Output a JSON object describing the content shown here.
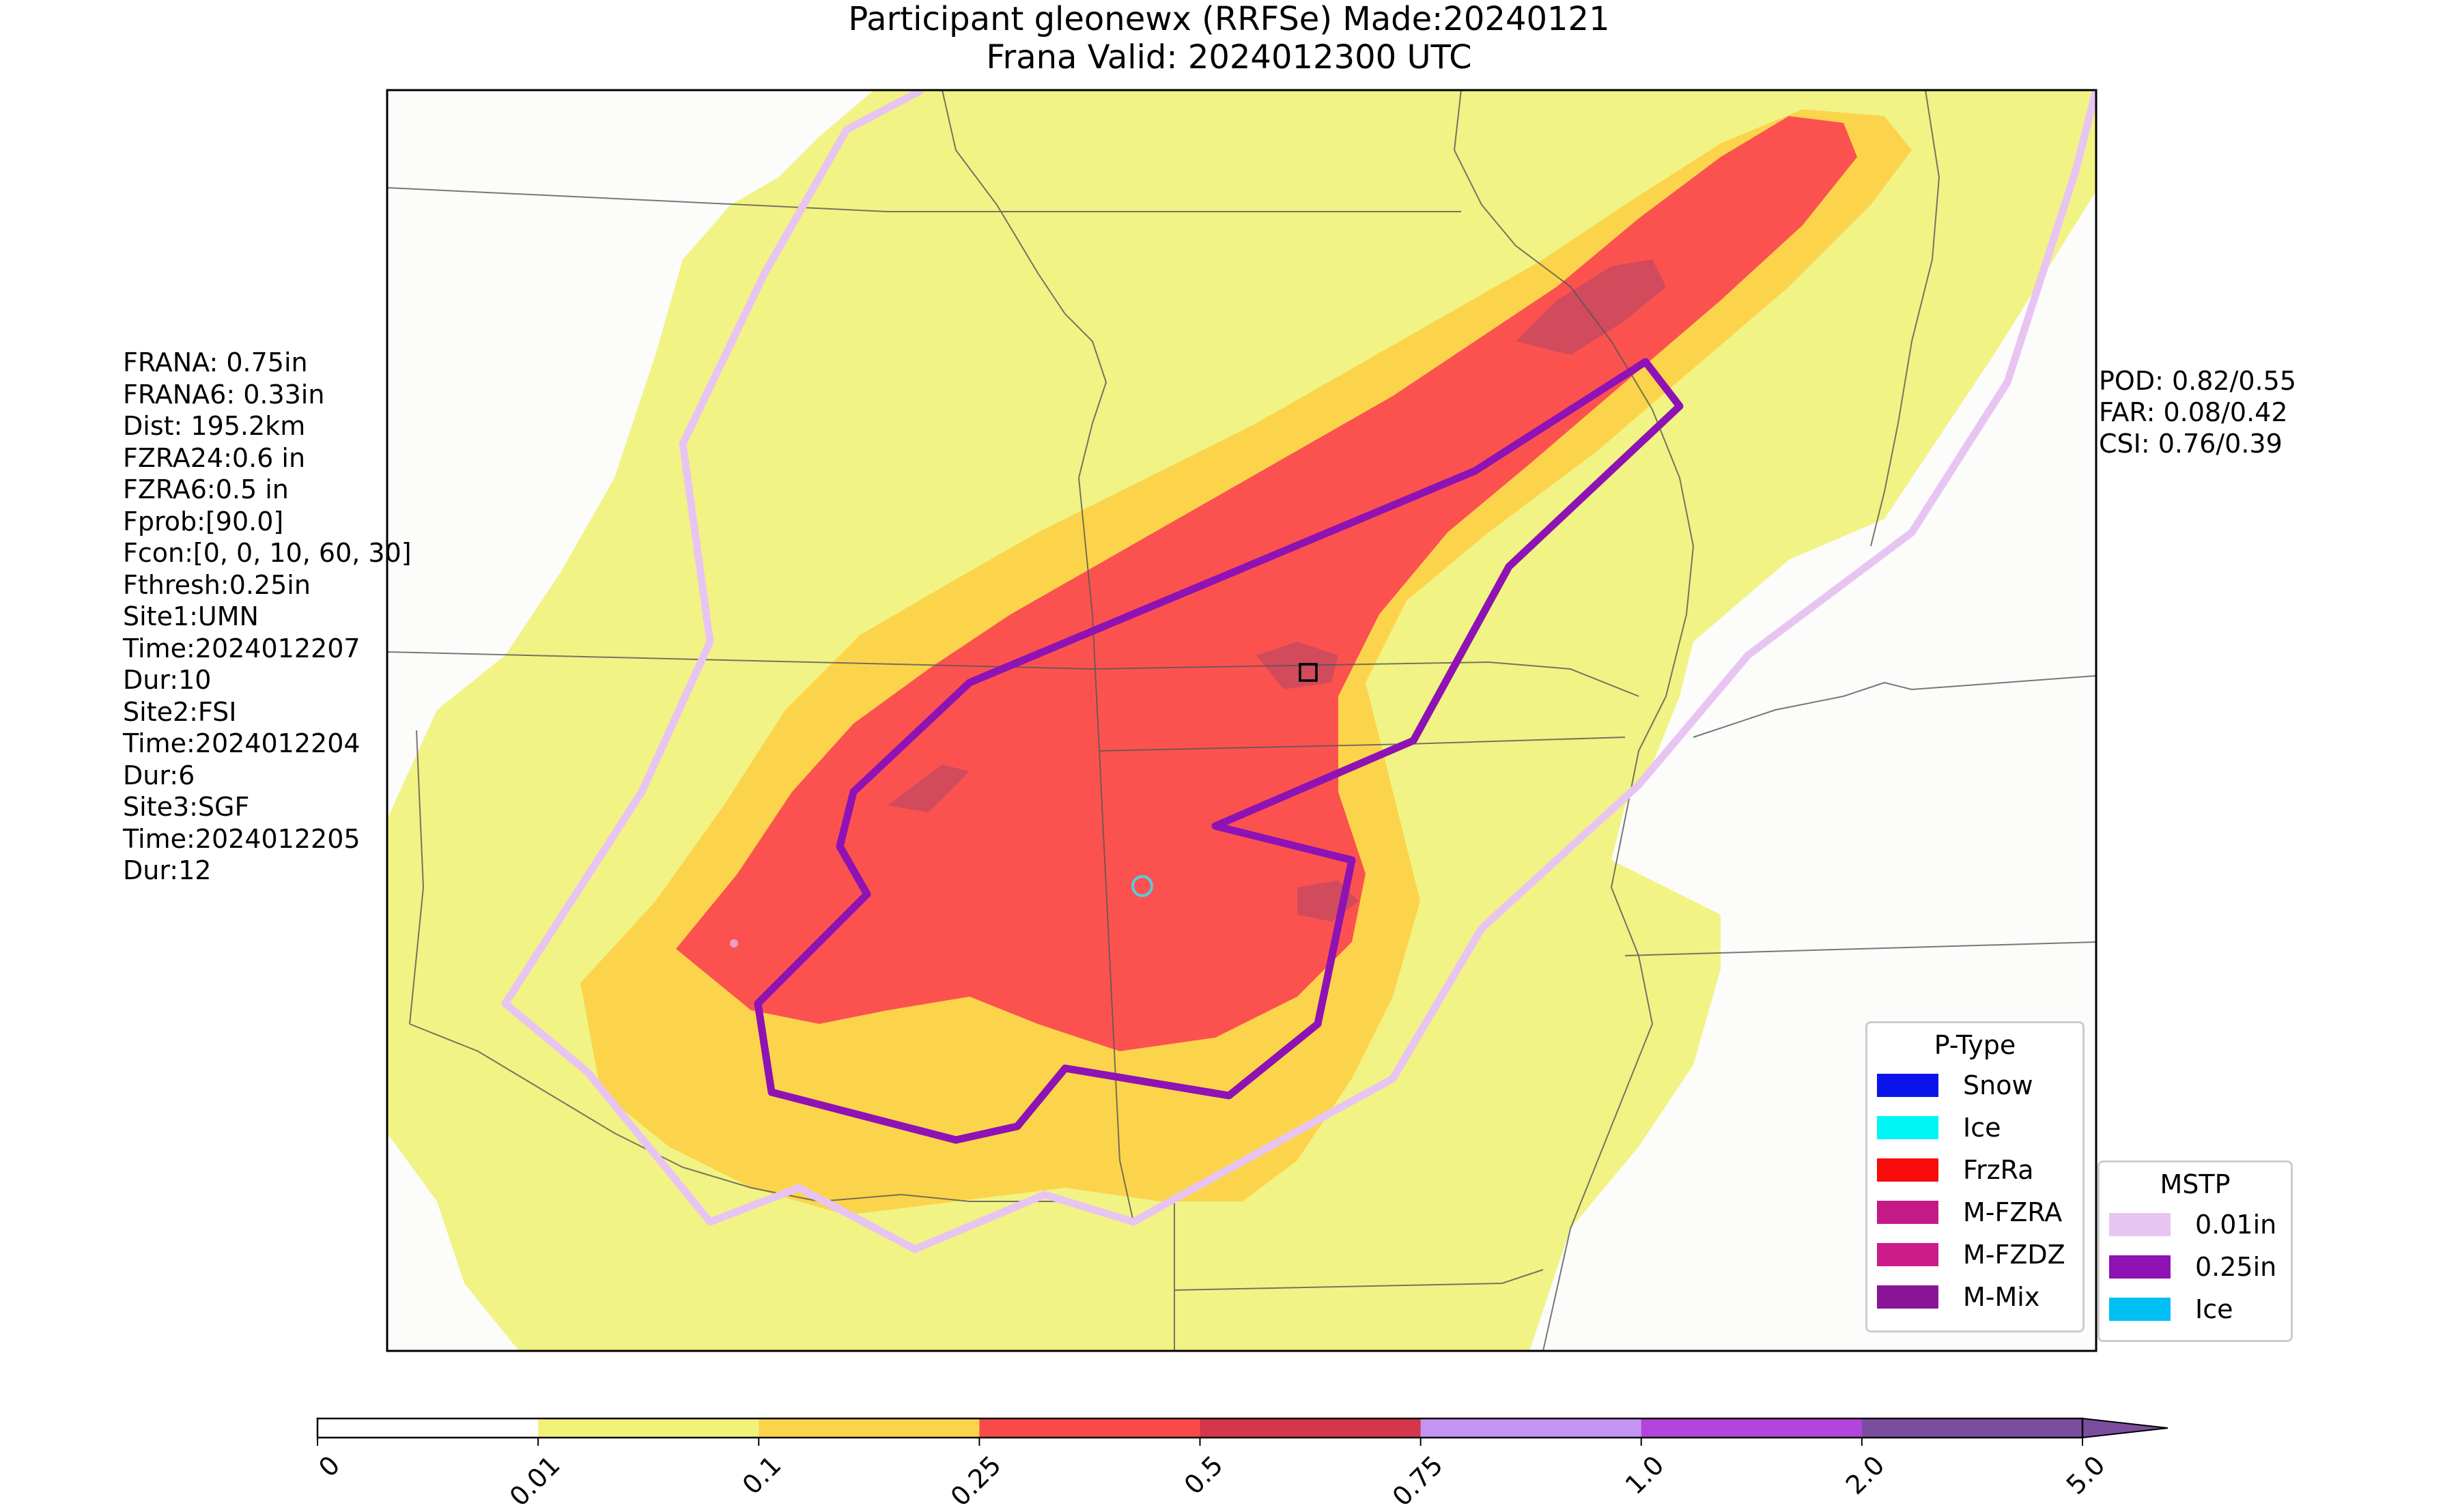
{
  "title": {
    "line1": "Participant gleonewx (RRFSe) Made:20240121",
    "line2": "Frana Valid: 2024012300 UTC"
  },
  "stats_left": [
    "FRANA: 0.75in",
    "FRANA6: 0.33in",
    "Dist: 195.2km",
    "FZRA24:0.6 in",
    "FZRA6:0.5 in",
    "Fprob:[90.0]",
    "Fcon:[0, 0, 10, 60, 30]",
    "Fthresh:0.25in",
    "Site1:UMN",
    "Time:2024012207",
    "Dur:10",
    "Site2:FSI",
    "Time:2024012204",
    "Dur:6",
    "Site3:SGF",
    "Time:2024012205",
    "Dur:12"
  ],
  "stats_right": [
    "POD: 0.82/0.55",
    "FAR: 0.08/0.42",
    "CSI: 0.76/0.39"
  ],
  "legend_ptype": {
    "title": "P-Type",
    "items": [
      {
        "label": "Snow",
        "color": "#0a14ea"
      },
      {
        "label": "Ice",
        "color": "#00f5f5"
      },
      {
        "label": "FrzRa",
        "color": "#f70b0b"
      },
      {
        "label": "M-FZRA",
        "color": "#c41a86"
      },
      {
        "label": "M-FZDZ",
        "color": "#cc1c8a"
      },
      {
        "label": "M-Mix",
        "color": "#8a1497"
      }
    ]
  },
  "legend_mstp": {
    "title": "MSTP",
    "items": [
      {
        "label": "0.01in",
        "color": "#e8c4f3"
      },
      {
        "label": "0.25in",
        "color": "#8e12b4"
      },
      {
        "label": "Ice",
        "color": "#00bff5"
      }
    ]
  },
  "colorbar": {
    "ticks": [
      "0",
      "0.01",
      "0.1",
      "0.25",
      "0.5",
      "0.75",
      "1.0",
      "2.0",
      "5.0"
    ],
    "colors": [
      "#ffffff",
      "#f2f27a",
      "#fcd44c",
      "#fa4a48",
      "#d4374a",
      "#c594f2",
      "#b344dc",
      "#7b4d9e"
    ]
  },
  "colors": {
    "shade_001": "#f1f385",
    "shade_01": "#fcd44c",
    "shade_025": "#fb5250",
    "shade_05": "#d14a5c",
    "mstp_001": "#e8c4f3",
    "mstp_025": "#8e12b4",
    "site_marker": "#5bc8e0"
  }
}
